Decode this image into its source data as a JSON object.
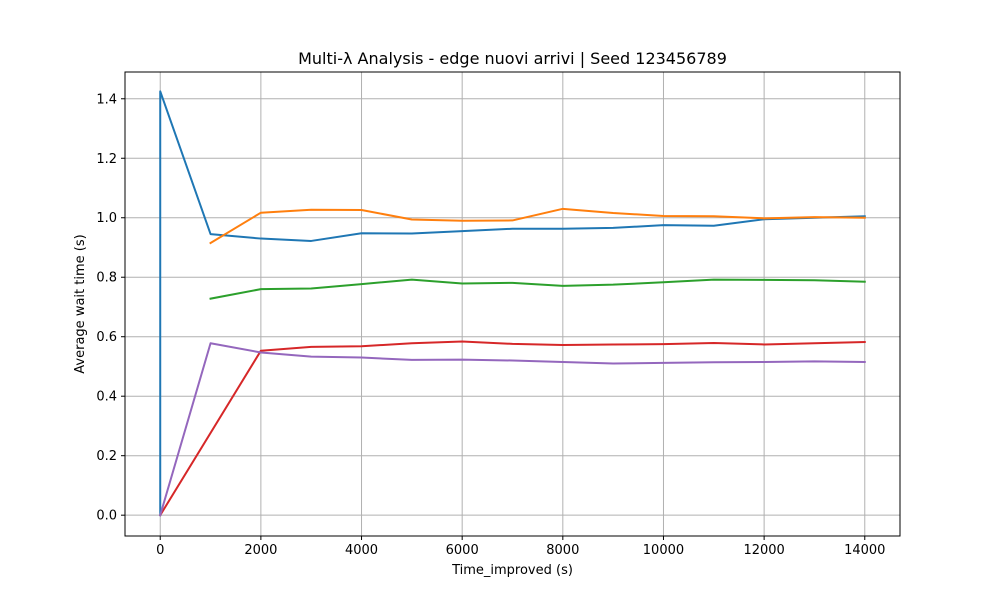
{
  "chart_data": {
    "type": "line",
    "title": "Multi-λ Analysis - edge nuovi arrivi | Seed 123456789",
    "xlabel": "Time_improved (s)",
    "ylabel": "Average wait time (s)",
    "xlim": [
      -700,
      14700
    ],
    "ylim": [
      -0.07,
      1.49
    ],
    "xticks": [
      0,
      2000,
      4000,
      6000,
      8000,
      10000,
      12000,
      14000
    ],
    "yticks": [
      0.0,
      0.2,
      0.4,
      0.6,
      0.8,
      1.0,
      1.2,
      1.4
    ],
    "xtick_labels": [
      "0",
      "2000",
      "4000",
      "6000",
      "8000",
      "10000",
      "12000",
      "14000"
    ],
    "ytick_labels": [
      "0.0",
      "0.2",
      "0.4",
      "0.6",
      "0.8",
      "1.0",
      "1.2",
      "1.4"
    ],
    "grid": true,
    "series": [
      {
        "color": "#1f77b4",
        "x": [
          0,
          0,
          1000,
          2000,
          3000,
          4000,
          5000,
          6000,
          7000,
          8000,
          9000,
          10000,
          11000,
          12000,
          13000,
          14000
        ],
        "y": [
          0.0,
          1.425,
          0.945,
          0.93,
          0.922,
          0.948,
          0.947,
          0.955,
          0.963,
          0.963,
          0.966,
          0.975,
          0.973,
          0.995,
          1.0,
          1.005
        ]
      },
      {
        "color": "#ff7f0e",
        "x": [
          1000,
          2000,
          3000,
          4000,
          5000,
          6000,
          7000,
          8000,
          9000,
          10000,
          11000,
          12000,
          13000,
          14000
        ],
        "y": [
          0.915,
          1.017,
          1.027,
          1.026,
          0.994,
          0.99,
          0.991,
          1.03,
          1.016,
          1.006,
          1.005,
          0.998,
          1.002,
          1.0
        ]
      },
      {
        "color": "#2ca02c",
        "x": [
          1000,
          2000,
          3000,
          4000,
          5000,
          6000,
          7000,
          8000,
          9000,
          10000,
          11000,
          12000,
          13000,
          14000
        ],
        "y": [
          0.728,
          0.76,
          0.762,
          0.777,
          0.792,
          0.779,
          0.781,
          0.771,
          0.775,
          0.783,
          0.792,
          0.791,
          0.79,
          0.785
        ]
      },
      {
        "color": "#d62728",
        "x": [
          0,
          2000,
          3000,
          4000,
          5000,
          6000,
          7000,
          8000,
          9000,
          10000,
          11000,
          12000,
          13000,
          14000
        ],
        "y": [
          0.0,
          0.553,
          0.566,
          0.568,
          0.578,
          0.584,
          0.576,
          0.572,
          0.574,
          0.575,
          0.579,
          0.574,
          0.578,
          0.582
        ]
      },
      {
        "color": "#9467bd",
        "x": [
          0,
          1000,
          2000,
          3000,
          4000,
          5000,
          6000,
          7000,
          8000,
          9000,
          10000,
          11000,
          12000,
          13000,
          14000
        ],
        "y": [
          0.0,
          0.578,
          0.547,
          0.533,
          0.53,
          0.522,
          0.523,
          0.52,
          0.515,
          0.51,
          0.512,
          0.514,
          0.515,
          0.517,
          0.515
        ]
      }
    ]
  }
}
